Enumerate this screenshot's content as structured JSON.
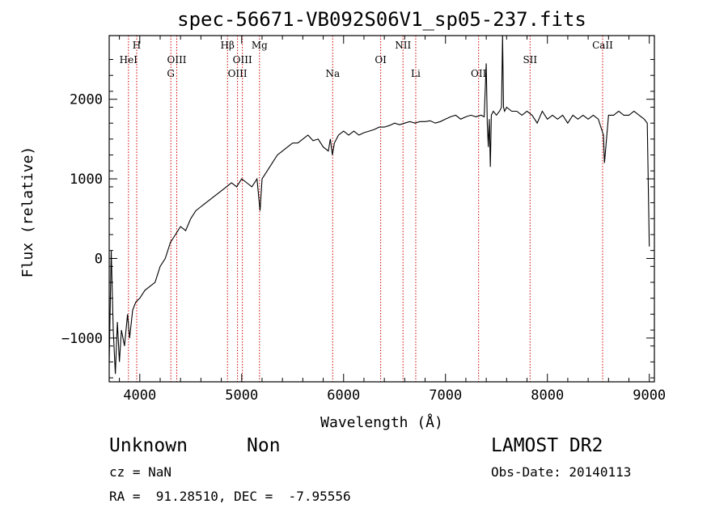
{
  "chart_data": {
    "type": "line",
    "title": "spec-56671-VB092S06V1_sp05-237.fits",
    "xlabel": "Wavelength (Å)",
    "ylabel": "Flux (relative)",
    "xlim": [
      3700,
      9050
    ],
    "ylim": [
      -1550,
      2800
    ],
    "xticks": [
      4000,
      5000,
      6000,
      7000,
      8000,
      9000
    ],
    "yticks": [
      -1000,
      0,
      1000,
      2000
    ],
    "grid": false,
    "line_color": "#000000",
    "marker_color": "#cc0000",
    "spectrum": {
      "name": "",
      "x": [
        3700,
        3720,
        3740,
        3760,
        3780,
        3800,
        3820,
        3850,
        3880,
        3900,
        3930,
        3960,
        4000,
        4050,
        4100,
        4150,
        4200,
        4250,
        4300,
        4350,
        4400,
        4450,
        4500,
        4550,
        4600,
        4650,
        4700,
        4750,
        4800,
        4850,
        4900,
        4950,
        5000,
        5050,
        5100,
        5150,
        5180,
        5200,
        5250,
        5300,
        5350,
        5400,
        5450,
        5500,
        5550,
        5600,
        5650,
        5700,
        5750,
        5800,
        5850,
        5870,
        5890,
        5910,
        5950,
        6000,
        6050,
        6100,
        6150,
        6200,
        6250,
        6300,
        6350,
        6400,
        6450,
        6500,
        6550,
        6600,
        6650,
        6700,
        6750,
        6800,
        6850,
        6900,
        6950,
        7000,
        7050,
        7100,
        7150,
        7200,
        7250,
        7300,
        7350,
        7380,
        7400,
        7410,
        7420,
        7430,
        7440,
        7450,
        7470,
        7500,
        7530,
        7550,
        7560,
        7570,
        7580,
        7600,
        7650,
        7700,
        7750,
        7800,
        7850,
        7900,
        7950,
        8000,
        8050,
        8100,
        8150,
        8200,
        8250,
        8300,
        8350,
        8400,
        8450,
        8500,
        8550,
        8560,
        8600,
        8650,
        8700,
        8750,
        8800,
        8850,
        8900,
        8950,
        8980,
        9000
      ],
      "y": [
        -1300,
        100,
        -900,
        -1450,
        -800,
        -1300,
        -900,
        -1100,
        -700,
        -1000,
        -650,
        -550,
        -500,
        -400,
        -350,
        -300,
        -100,
        0,
        200,
        300,
        400,
        350,
        500,
        600,
        650,
        700,
        750,
        800,
        850,
        900,
        950,
        900,
        1000,
        950,
        900,
        1000,
        600,
        1000,
        1100,
        1200,
        1300,
        1350,
        1400,
        1450,
        1450,
        1500,
        1550,
        1480,
        1500,
        1400,
        1350,
        1500,
        1300,
        1450,
        1550,
        1600,
        1550,
        1600,
        1550,
        1580,
        1600,
        1620,
        1650,
        1650,
        1670,
        1700,
        1680,
        1700,
        1720,
        1700,
        1720,
        1720,
        1730,
        1700,
        1720,
        1750,
        1780,
        1800,
        1750,
        1780,
        1800,
        1780,
        1800,
        1780,
        2450,
        1700,
        1400,
        1750,
        1150,
        1800,
        1850,
        1800,
        1850,
        1900,
        2800,
        1900,
        1850,
        1900,
        1850,
        1850,
        1800,
        1850,
        1800,
        1700,
        1850,
        1750,
        1800,
        1750,
        1800,
        1700,
        1800,
        1750,
        1800,
        1750,
        1800,
        1750,
        1550,
        1200,
        1800,
        1800,
        1850,
        1800,
        1800,
        1850,
        1800,
        1750,
        1700,
        150
      ]
    },
    "line_markers": [
      {
        "label": "H",
        "wavelength": 3970,
        "row": 0
      },
      {
        "label": "HeI",
        "wavelength": 3889,
        "row": 1
      },
      {
        "label": "OIII",
        "wavelength": 4363,
        "row": 1
      },
      {
        "label": "G",
        "wavelength": 4305,
        "row": 2
      },
      {
        "label": "Hβ",
        "wavelength": 4861,
        "row": 0
      },
      {
        "label": "OIII",
        "wavelength": 5007,
        "row": 1
      },
      {
        "label": "OIII",
        "wavelength": 4959,
        "row": 2
      },
      {
        "label": "Mg",
        "wavelength": 5175,
        "row": 0
      },
      {
        "label": "Na",
        "wavelength": 5893,
        "row": 2
      },
      {
        "label": "OI",
        "wavelength": 6364,
        "row": 1
      },
      {
        "label": "NII",
        "wavelength": 6583,
        "row": 0
      },
      {
        "label": "Li",
        "wavelength": 6708,
        "row": 2
      },
      {
        "label": "OII",
        "wavelength": 7325,
        "row": 2
      },
      {
        "label": "SII",
        "wavelength": 7830,
        "row": 1
      },
      {
        "label": "CaII",
        "wavelength": 8542,
        "row": 0
      }
    ]
  },
  "info": {
    "object_class": "Unknown",
    "object_subclass": "Non",
    "survey": "LAMOST DR2",
    "cz": "cz = NaN",
    "obs_date": "Obs-Date: 20140113",
    "coords": "RA =  91.28510, DEC =  -7.95556"
  }
}
